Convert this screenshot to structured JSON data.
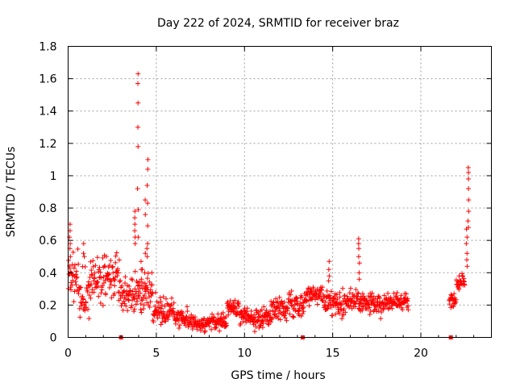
{
  "chart_data": {
    "type": "scatter",
    "title": "Day 222 of 2024, SRMTID for receiver braz",
    "xlabel": "GPS time / hours",
    "ylabel": "SRMTID / TECUs",
    "xlim": [
      0,
      24
    ],
    "ylim": [
      0,
      1.8
    ],
    "grid": true,
    "marker": "plus",
    "series_color": "#ff0000",
    "xticks": [
      {
        "value": 0,
        "label": "0"
      },
      {
        "value": 5,
        "label": "5"
      },
      {
        "value": 10,
        "label": "10"
      },
      {
        "value": 15,
        "label": "15"
      },
      {
        "value": 20,
        "label": "20"
      }
    ],
    "yticks": [
      {
        "value": 0,
        "label": "0"
      },
      {
        "value": 0.2,
        "label": "0.2"
      },
      {
        "value": 0.4,
        "label": "0.4"
      },
      {
        "value": 0.6,
        "label": "0.6"
      },
      {
        "value": 0.8,
        "label": "0.8"
      },
      {
        "value": 1.0,
        "label": "1"
      },
      {
        "value": 1.2,
        "label": "1.2"
      },
      {
        "value": 1.4,
        "label": "1.4"
      },
      {
        "value": 1.6,
        "label": "1.6"
      },
      {
        "value": 1.8,
        "label": "1.8"
      }
    ],
    "gap_markers": [
      3.0,
      13.3,
      21.7
    ],
    "segments": [
      {
        "start": 0.0,
        "end": 0.6,
        "base": 0.38,
        "noise": 0.16
      },
      {
        "start": 0.6,
        "end": 1.2,
        "base": 0.26,
        "noise": 0.14
      },
      {
        "start": 1.2,
        "end": 2.0,
        "base": 0.33,
        "noise": 0.14
      },
      {
        "start": 2.0,
        "end": 2.9,
        "base": 0.38,
        "noise": 0.13
      },
      {
        "start": 2.9,
        "end": 3.8,
        "base": 0.28,
        "noise": 0.12
      },
      {
        "start": 3.8,
        "end": 4.8,
        "base": 0.28,
        "noise": 0.14
      },
      {
        "start": 4.8,
        "end": 6.0,
        "base": 0.17,
        "noise": 0.08
      },
      {
        "start": 6.0,
        "end": 7.0,
        "base": 0.12,
        "noise": 0.06
      },
      {
        "start": 7.0,
        "end": 8.0,
        "base": 0.08,
        "noise": 0.04
      },
      {
        "start": 8.0,
        "end": 9.0,
        "base": 0.1,
        "noise": 0.05
      },
      {
        "start": 9.0,
        "end": 9.7,
        "base": 0.18,
        "noise": 0.05
      },
      {
        "start": 9.7,
        "end": 10.5,
        "base": 0.13,
        "noise": 0.05
      },
      {
        "start": 10.5,
        "end": 11.5,
        "base": 0.12,
        "noise": 0.06
      },
      {
        "start": 11.5,
        "end": 12.5,
        "base": 0.18,
        "noise": 0.07
      },
      {
        "start": 12.5,
        "end": 13.4,
        "base": 0.2,
        "noise": 0.08
      },
      {
        "start": 13.4,
        "end": 14.5,
        "base": 0.26,
        "noise": 0.06
      },
      {
        "start": 14.5,
        "end": 15.5,
        "base": 0.22,
        "noise": 0.07
      },
      {
        "start": 15.5,
        "end": 16.8,
        "base": 0.22,
        "noise": 0.08
      },
      {
        "start": 16.8,
        "end": 18.0,
        "base": 0.2,
        "noise": 0.07
      },
      {
        "start": 18.0,
        "end": 19.3,
        "base": 0.22,
        "noise": 0.05
      },
      {
        "start": 21.6,
        "end": 22.0,
        "base": 0.22,
        "noise": 0.05
      },
      {
        "start": 22.0,
        "end": 22.5,
        "base": 0.34,
        "noise": 0.05
      }
    ],
    "spikes": [
      {
        "x": 0.1,
        "values": [
          0.7,
          0.66,
          0.62,
          0.58,
          0.55,
          0.5
        ]
      },
      {
        "x": 0.9,
        "values": [
          0.58,
          0.52,
          0.5
        ]
      },
      {
        "x": 3.8,
        "values": [
          0.78,
          0.74,
          0.7,
          0.66,
          0.62,
          0.58
        ]
      },
      {
        "x": 3.95,
        "values": [
          1.63,
          1.57,
          1.45,
          1.3,
          1.18,
          0.92,
          0.79,
          0.62
        ]
      },
      {
        "x": 4.15,
        "values": [
          0.47,
          0.42,
          0.36
        ]
      },
      {
        "x": 4.35,
        "values": [
          0.85,
          0.76,
          0.52,
          0.4
        ]
      },
      {
        "x": 4.5,
        "values": [
          1.1,
          1.04,
          0.94,
          0.83,
          0.69,
          0.58,
          0.55,
          0.5
        ]
      },
      {
        "x": 14.8,
        "values": [
          0.47,
          0.42,
          0.38,
          0.35
        ]
      },
      {
        "x": 16.5,
        "values": [
          0.61,
          0.58,
          0.55,
          0.5,
          0.46,
          0.4,
          0.36
        ]
      },
      {
        "x": 22.6,
        "values": [
          0.67,
          0.62,
          0.58,
          0.52,
          0.48,
          0.44
        ]
      },
      {
        "x": 22.7,
        "values": [
          1.05,
          1.02,
          0.98,
          0.92,
          0.85,
          0.78,
          0.72,
          0.68
        ]
      }
    ]
  }
}
